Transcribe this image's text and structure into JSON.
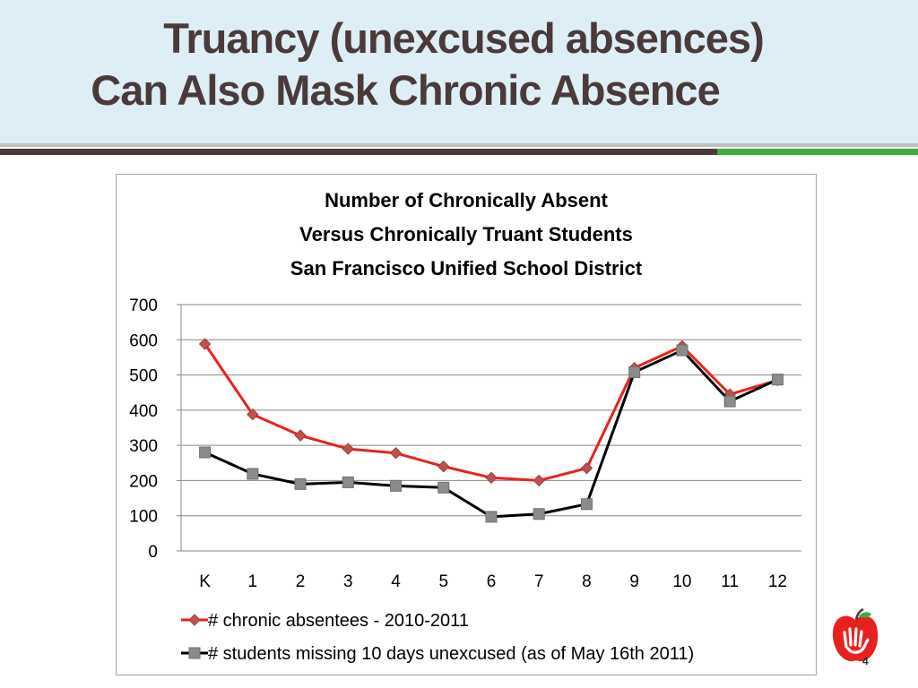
{
  "slide": {
    "title_line1": "Truancy (unexcused absences)",
    "title_line2": "Can Also Mask Chronic Absence",
    "page_number": "4",
    "colors": {
      "title": "#4a3a39",
      "header_bg": "#deeef6",
      "band_brown": "#4a3a39",
      "band_green": "#3fae3f"
    }
  },
  "chart_data": {
    "type": "line",
    "title_lines": [
      "Number of Chronically Absent",
      "Versus Chronically Truant Students",
      "San Francisco Unified School District"
    ],
    "categories": [
      "K",
      "1",
      "2",
      "3",
      "4",
      "5",
      "6",
      "7",
      "8",
      "9",
      "10",
      "11",
      "12"
    ],
    "ylim": [
      0,
      700
    ],
    "yticks": [
      0,
      100,
      200,
      300,
      400,
      500,
      600,
      700
    ],
    "grid": true,
    "legend_position": "bottom",
    "series": [
      {
        "name": "# chronic absentees - 2010-2011",
        "line_color": "#e8211f",
        "marker": "diamond",
        "marker_color": "#c0504d",
        "values": [
          588,
          388,
          328,
          290,
          278,
          240,
          208,
          200,
          235,
          520,
          582,
          445,
          485
        ]
      },
      {
        "name": "# students missing 10 days unexcused (as of May 16th 2011)",
        "line_color": "#000000",
        "marker": "square",
        "marker_color": "#8c8c8c",
        "values": [
          280,
          219,
          190,
          195,
          185,
          180,
          97,
          105,
          133,
          508,
          570,
          425,
          487
        ]
      }
    ]
  }
}
